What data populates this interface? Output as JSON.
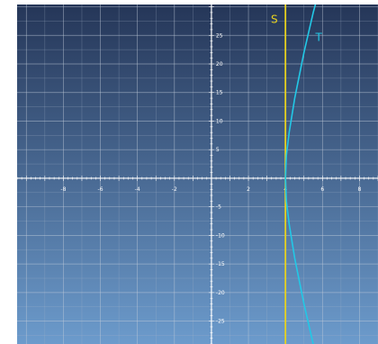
{
  "chart_data": {
    "type": "line",
    "title": "",
    "xlabel": "",
    "ylabel": "",
    "xlim": [
      -10.5,
      9.0
    ],
    "ylim": [
      -29.0,
      30.4
    ],
    "grid": true,
    "minor_grid": true,
    "x_ticks": [
      -8,
      -6,
      -4,
      -2,
      2,
      4,
      6,
      8
    ],
    "y_ticks": [
      -25,
      -20,
      -15,
      -10,
      -5,
      5,
      10,
      15,
      20,
      25
    ],
    "series": [
      {
        "name": "S",
        "color": "#e8d21e",
        "x": [
          4,
          4
        ],
        "y": [
          -29,
          30.4
        ]
      },
      {
        "name": "T",
        "color": "#22c8e6",
        "x": [
          5.5,
          5.0,
          4.5,
          4.2,
          4.05,
          4.0,
          4.05,
          4.2,
          4.5,
          5.0,
          5.5,
          6.0
        ],
        "y": [
          -29,
          -22,
          -14,
          -8,
          -4,
          0,
          4,
          8,
          14,
          22,
          29,
          35
        ]
      }
    ],
    "annotations": [
      {
        "text": "S",
        "x": 3.4,
        "y": 27.2,
        "color": "#e8d21e"
      },
      {
        "text": "T",
        "x": 5.8,
        "y": 24.0,
        "color": "#22c8e6"
      }
    ],
    "colors": {
      "background_top": "#253658",
      "background_bottom": "#6c9bcc",
      "axis": "#ffffff",
      "grid_major": "#c3cdda",
      "grid_minor": "#a7b6c9"
    }
  }
}
